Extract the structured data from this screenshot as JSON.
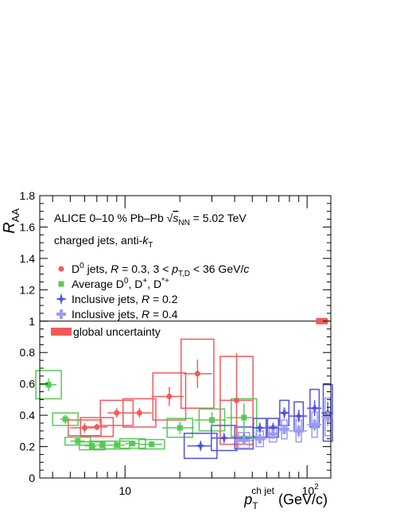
{
  "chart_data": {
    "type": "scatter",
    "ylabel_main": "R",
    "ylabel_sub": "AA",
    "xlabel_main": "p",
    "xlabel_sub": "T",
    "xlabel_sup": "ch jet",
    "xlabel_unit": "(GeV/c)",
    "xscale": "log",
    "xlim": [
      3.4,
      135
    ],
    "ylim": [
      0,
      1.8
    ],
    "yticks": [
      "0",
      "0.2",
      "0.4",
      "0.6",
      "0.8",
      "1",
      "1.2",
      "1.4",
      "1.6",
      "1.8"
    ],
    "ytick_values": [
      0,
      0.2,
      0.4,
      0.6,
      0.8,
      1.0,
      1.2,
      1.4,
      1.6,
      1.8
    ],
    "xticks": [
      "10",
      "10"
    ],
    "xtick_sup": [
      "",
      "2"
    ],
    "xtick_values": [
      10,
      100
    ],
    "reference_line": 1.0,
    "global_uncertainty": {
      "x": [
        112,
        130
      ],
      "y": [
        0.98,
        1.02
      ],
      "color": "#f25a5a"
    },
    "annotations": {
      "line1_prefix": "ALICE  0–10 % Pb–Pb ",
      "line1_sqrt": "√",
      "line1_s": "s",
      "line1_nn": "NN",
      "line1_suffix": " = 5.02 TeV",
      "line2_prefix": "charged jets, anti-",
      "line2_k": "k",
      "line2_sub": "T"
    },
    "legend": [
      {
        "id": "d0",
        "marker": "circle",
        "color": "#f25a5a",
        "parts": [
          [
            "D",
            ""
          ],
          [
            "0",
            "sup"
          ],
          [
            " jets, ",
            ""
          ],
          [
            "R",
            "i"
          ],
          [
            " = 0.3, 3 < ",
            ""
          ],
          [
            "p",
            "i"
          ],
          [
            "T,D",
            "sub"
          ],
          [
            " < 36 GeV/",
            ""
          ],
          [
            "c",
            "i"
          ]
        ]
      },
      {
        "id": "avg",
        "marker": "square",
        "color": "#56c956",
        "parts": [
          [
            "Average D",
            ""
          ],
          [
            "0",
            "sup"
          ],
          [
            ", D",
            ""
          ],
          [
            "+",
            "sup"
          ],
          [
            ", D",
            ""
          ],
          [
            "*+",
            "sup"
          ]
        ]
      },
      {
        "id": "inc02",
        "marker": "star",
        "color": "#5050e8",
        "parts": [
          [
            "Inclusive jets, ",
            ""
          ],
          [
            "R",
            "i"
          ],
          [
            " = 0.2",
            ""
          ]
        ]
      },
      {
        "id": "inc04",
        "marker": "cross",
        "color": "#9b9bf0",
        "parts": [
          [
            "Inclusive jets, ",
            ""
          ],
          [
            "R",
            "i"
          ],
          [
            " = 0.4",
            ""
          ]
        ]
      },
      {
        "id": "glob",
        "marker": "band",
        "color": "#f25a5a",
        "parts": [
          [
            "global uncertainty",
            ""
          ]
        ]
      }
    ],
    "series": [
      {
        "id": "d0",
        "marker": "circle",
        "color": "#f25a5a",
        "points": [
          {
            "x": 6.0,
            "y": 0.32,
            "xlo": 5.0,
            "xhi": 7.0,
            "elo": 0.03,
            "ehi": 0.03,
            "slo": 0.05,
            "shi": 0.05,
            "bw": 0.09
          },
          {
            "x": 7.0,
            "y": 0.325,
            "xlo": 6.0,
            "xhi": 8.0,
            "elo": 0.02,
            "ehi": 0.02,
            "slo": 0.06,
            "shi": 0.06,
            "bw": 0.09
          },
          {
            "x": 9.0,
            "y": 0.415,
            "xlo": 8.0,
            "xhi": 10.0,
            "elo": 0.03,
            "ehi": 0.03,
            "slo": 0.08,
            "shi": 0.08,
            "bw": 0.09
          },
          {
            "x": 12.0,
            "y": 0.415,
            "xlo": 10.0,
            "xhi": 14.0,
            "elo": 0.03,
            "ehi": 0.03,
            "slo": 0.09,
            "shi": 0.09,
            "bw": 0.09
          },
          {
            "x": 17.5,
            "y": 0.52,
            "xlo": 14.0,
            "xhi": 21.0,
            "elo": 0.06,
            "ehi": 0.06,
            "slo": 0.15,
            "shi": 0.15,
            "bw": 0.09
          },
          {
            "x": 25.0,
            "y": 0.665,
            "xlo": 21.0,
            "xhi": 30.0,
            "elo": 0.09,
            "ehi": 0.09,
            "slo": 0.22,
            "shi": 0.22,
            "bw": 0.09
          },
          {
            "x": 41.0,
            "y": 0.495,
            "xlo": 33.0,
            "xhi": 50.0,
            "elo": 0.3,
            "ehi": 0.3,
            "slo": 0.28,
            "shi": 0.28,
            "bw": 0.09
          }
        ]
      },
      {
        "id": "avg",
        "marker": "square",
        "color": "#56c956",
        "points": [
          {
            "x": 3.8,
            "y": 0.595,
            "xlo": 3.4,
            "xhi": 4.2,
            "elo": 0.04,
            "ehi": 0.04,
            "slo": 0.09,
            "shi": 0.09,
            "bw": 0.07
          },
          {
            "x": 4.7,
            "y": 0.375,
            "xlo": 4.4,
            "xhi": 5.0,
            "elo": 0.03,
            "ehi": 0.03,
            "slo": 0.04,
            "shi": 0.04,
            "bw": 0.07
          },
          {
            "x": 5.5,
            "y": 0.235,
            "xlo": 5.0,
            "xhi": 6.0,
            "elo": 0.02,
            "ehi": 0.02,
            "slo": 0.025,
            "shi": 0.025,
            "bw": 0.07
          },
          {
            "x": 6.6,
            "y": 0.205,
            "xlo": 6.0,
            "xhi": 7.0,
            "elo": 0.02,
            "ehi": 0.02,
            "slo": 0.025,
            "shi": 0.025,
            "bw": 0.07
          },
          {
            "x": 7.5,
            "y": 0.21,
            "xlo": 7.0,
            "xhi": 8.0,
            "elo": 0.02,
            "ehi": 0.02,
            "slo": 0.025,
            "shi": 0.025,
            "bw": 0.07
          },
          {
            "x": 9.0,
            "y": 0.21,
            "xlo": 8.0,
            "xhi": 10.0,
            "elo": 0.02,
            "ehi": 0.02,
            "slo": 0.025,
            "shi": 0.025,
            "bw": 0.07
          },
          {
            "x": 11.0,
            "y": 0.22,
            "xlo": 10.0,
            "xhi": 12.0,
            "elo": 0.02,
            "ehi": 0.02,
            "slo": 0.03,
            "shi": 0.03,
            "bw": 0.07
          },
          {
            "x": 14.0,
            "y": 0.215,
            "xlo": 12.0,
            "xhi": 16.0,
            "elo": 0.02,
            "ehi": 0.02,
            "slo": 0.03,
            "shi": 0.03,
            "bw": 0.07
          },
          {
            "x": 20.0,
            "y": 0.32,
            "xlo": 16.0,
            "xhi": 24.0,
            "elo": 0.04,
            "ehi": 0.04,
            "slo": 0.06,
            "shi": 0.06,
            "bw": 0.07
          },
          {
            "x": 30.0,
            "y": 0.37,
            "xlo": 24.0,
            "xhi": 36.0,
            "elo": 0.05,
            "ehi": 0.05,
            "slo": 0.07,
            "shi": 0.07,
            "bw": 0.07
          },
          {
            "x": 45.0,
            "y": 0.385,
            "xlo": 36.0,
            "xhi": 50.0,
            "elo": 0.09,
            "ehi": 0.09,
            "slo": 0.12,
            "shi": 0.12,
            "bw": 0.07
          }
        ]
      },
      {
        "id": "inc02",
        "marker": "star",
        "color": "#5050e8",
        "points": [
          {
            "x": 26.0,
            "y": 0.205,
            "xlo": 22.0,
            "xhi": 30.0,
            "elo": 0.025,
            "ehi": 0.025,
            "slo": 0.08,
            "shi": 0.08,
            "bw": 0.09
          },
          {
            "x": 35.0,
            "y": 0.255,
            "xlo": 30.0,
            "xhi": 40.0,
            "elo": 0.03,
            "ehi": 0.03,
            "slo": 0.08,
            "shi": 0.08,
            "bw": 0.07
          },
          {
            "x": 45.0,
            "y": 0.255,
            "xlo": 40.0,
            "xhi": 50.0,
            "elo": 0.03,
            "ehi": 0.03,
            "slo": 0.07,
            "shi": 0.07,
            "bw": 0.05
          },
          {
            "x": 55.0,
            "y": 0.32,
            "xlo": 50.0,
            "xhi": 60.0,
            "elo": 0.03,
            "ehi": 0.03,
            "slo": 0.06,
            "shi": 0.06,
            "bw": 0.035
          },
          {
            "x": 65.0,
            "y": 0.32,
            "xlo": 60.0,
            "xhi": 70.0,
            "elo": 0.03,
            "ehi": 0.03,
            "slo": 0.06,
            "shi": 0.06,
            "bw": 0.03
          },
          {
            "x": 75.0,
            "y": 0.415,
            "xlo": 70.0,
            "xhi": 80.0,
            "elo": 0.035,
            "ehi": 0.035,
            "slo": 0.08,
            "shi": 0.08,
            "bw": 0.025
          },
          {
            "x": 90.0,
            "y": 0.395,
            "xlo": 80.0,
            "xhi": 100.0,
            "elo": 0.04,
            "ehi": 0.04,
            "slo": 0.09,
            "shi": 0.09,
            "bw": 0.025
          },
          {
            "x": 110.0,
            "y": 0.445,
            "xlo": 100.0,
            "xhi": 120.0,
            "elo": 0.05,
            "ehi": 0.05,
            "slo": 0.12,
            "shi": 0.12,
            "bw": 0.025
          },
          {
            "x": 130.0,
            "y": 0.415,
            "xlo": 120.0,
            "xhi": 135.0,
            "elo": 0.07,
            "ehi": 0.07,
            "slo": 0.18,
            "shi": 0.18,
            "bw": 0.025
          }
        ]
      },
      {
        "id": "inc04",
        "marker": "cross",
        "color": "#9b9bf0",
        "points": [
          {
            "x": 45.0,
            "y": 0.24,
            "xlo": 40.0,
            "xhi": 50.0,
            "elo": 0.03,
            "ehi": 0.03,
            "slo": 0.05,
            "shi": 0.05,
            "bw": 0.03
          },
          {
            "x": 55.0,
            "y": 0.25,
            "xlo": 50.0,
            "xhi": 60.0,
            "elo": 0.03,
            "ehi": 0.03,
            "slo": 0.05,
            "shi": 0.05,
            "bw": 0.02
          },
          {
            "x": 65.0,
            "y": 0.28,
            "xlo": 60.0,
            "xhi": 70.0,
            "elo": 0.03,
            "ehi": 0.03,
            "slo": 0.05,
            "shi": 0.05,
            "bw": 0.02
          },
          {
            "x": 75.0,
            "y": 0.31,
            "xlo": 70.0,
            "xhi": 80.0,
            "elo": 0.03,
            "ehi": 0.03,
            "slo": 0.06,
            "shi": 0.06,
            "bw": 0.015
          },
          {
            "x": 90.0,
            "y": 0.3,
            "xlo": 80.0,
            "xhi": 100.0,
            "elo": 0.04,
            "ehi": 0.04,
            "slo": 0.07,
            "shi": 0.07,
            "bw": 0.015
          },
          {
            "x": 110.0,
            "y": 0.34,
            "xlo": 100.0,
            "xhi": 120.0,
            "elo": 0.04,
            "ehi": 0.04,
            "slo": 0.08,
            "shi": 0.08,
            "bw": 0.015
          },
          {
            "x": 130.0,
            "y": 0.39,
            "xlo": 120.0,
            "xhi": 135.0,
            "elo": 0.06,
            "ehi": 0.06,
            "slo": 0.12,
            "shi": 0.12,
            "bw": 0.015
          }
        ]
      }
    ]
  }
}
